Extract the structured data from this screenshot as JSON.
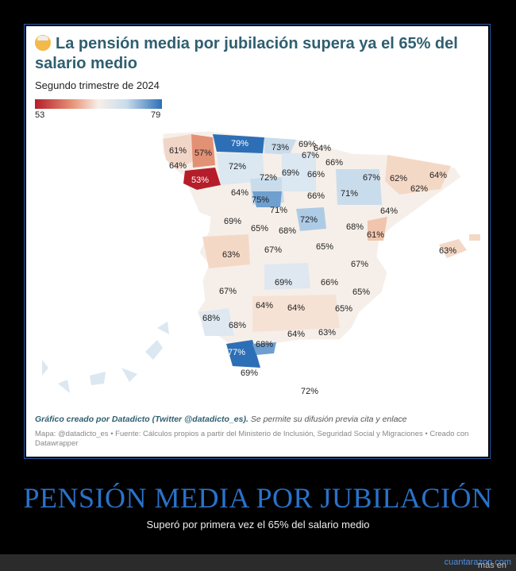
{
  "card": {
    "title": "La pensión media por jubilación supera ya el 65% del salario medio",
    "subtitle": "Segundo trimestre de 2024",
    "legend_min": "53",
    "legend_max": "79",
    "credit_bold": "Gráfico creado por Datadicto (Twitter @datadicto_es).",
    "credit_rest": " Se permite su difusión previa cita y enlace",
    "source": "Mapa: @datadicto_es • Fuente: Cálculos propios a partir del Ministerio de Inclusión, Seguridad Social y Migraciones • Creado con Datawrapper"
  },
  "map_labels": [
    "61%",
    "57%",
    "79%",
    "73%",
    "69%",
    "64%",
    "67%",
    "64%",
    "72%",
    "66%",
    "53%",
    "72%",
    "69%",
    "66%",
    "67%",
    "62%",
    "64%",
    "62%",
    "64%",
    "75%",
    "71%",
    "66%",
    "71%",
    "64%",
    "69%",
    "65%",
    "68%",
    "72%",
    "68%",
    "61%",
    "63%",
    "67%",
    "65%",
    "63%",
    "67%",
    "69%",
    "66%",
    "67%",
    "65%",
    "64%",
    "64%",
    "65%",
    "68%",
    "68%",
    "64%",
    "63%",
    "77%",
    "68%",
    "69%",
    "72%"
  ],
  "map_colors": {
    "low": "#b51d2a",
    "mid": "#f7efe8",
    "high": "#2d6fb7"
  },
  "headline": "PENSIÓN MEDIA POR JUBILACIÓN",
  "subheadline": "Superó por primera vez el 65% del salario medio",
  "footer": {
    "prefix": "más en ",
    "site": "cuantarazon.com"
  }
}
